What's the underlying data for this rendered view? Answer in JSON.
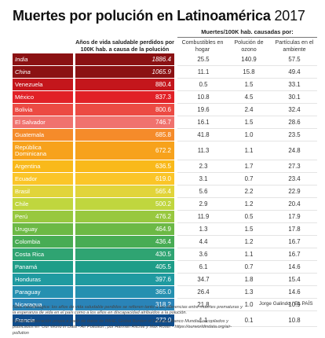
{
  "title": {
    "main": "Muertes por polución en Latinoamérica",
    "year": "2017"
  },
  "headers": {
    "main": "Años de vida saludable perdidos por 100K hab. a causa de la polución",
    "group": "Muertes/100K hab. causadas por:",
    "col1": "Combustibles en hogar",
    "col2": "Polución de ozono",
    "col3": "Partículas en el ambiente"
  },
  "chart_data": {
    "type": "table",
    "columns": [
      "Años de vida saludable perdidos por 100K hab. a causa de la polución",
      "Combustibles en hogar",
      "Polución de ozono",
      "Partículas en el ambiente"
    ],
    "rows": [
      {
        "country": "India",
        "value": "1886.4",
        "col1": "25.5",
        "col2": "140.9",
        "col3": "57.5",
        "color": "#8b1113",
        "italic": true
      },
      {
        "country": "China",
        "value": "1065.9",
        "col1": "11.1",
        "col2": "15.8",
        "col3": "49.4",
        "color": "#8b1113",
        "italic": true
      },
      {
        "country": "Venezuela",
        "value": "880.4",
        "col1": "0.5",
        "col2": "1.5",
        "col3": "33.1",
        "color": "#c4161c"
      },
      {
        "country": "México",
        "value": "837.3",
        "col1": "10.8",
        "col2": "4.5",
        "col3": "30.1",
        "color": "#e12127"
      },
      {
        "country": "Bolivia",
        "value": "800.6",
        "col1": "19.6",
        "col2": "2.4",
        "col3": "32.4",
        "color": "#ec4a43"
      },
      {
        "country": "El Salvador",
        "value": "746.7",
        "col1": "16.1",
        "col2": "1.5",
        "col3": "28.6",
        "color": "#f0726e"
      },
      {
        "country": "Guatemala",
        "value": "685.8",
        "col1": "41.8",
        "col2": "1.0",
        "col3": "23.5",
        "color": "#f58b2a"
      },
      {
        "country": "República Dominicana",
        "value": "672.2",
        "col1": "11.3",
        "col2": "1.1",
        "col3": "24.8",
        "color": "#f7a21c",
        "tall": true
      },
      {
        "country": "Argentina",
        "value": "636.5",
        "col1": "2.3",
        "col2": "1.7",
        "col3": "27.3",
        "color": "#f9b91a"
      },
      {
        "country": "Ecuador",
        "value": "619.0",
        "col1": "3.1",
        "col2": "0.7",
        "col3": "23.4",
        "color": "#fbc528"
      },
      {
        "country": "Brasil",
        "value": "565.4",
        "col1": "5.6",
        "col2": "2.2",
        "col3": "22.9",
        "color": "#e1d43a"
      },
      {
        "country": "Chile",
        "value": "500.2",
        "col1": "2.9",
        "col2": "1.2",
        "col3": "20.4",
        "color": "#c0d63e"
      },
      {
        "country": "Perú",
        "value": "476.2",
        "col1": "11.9",
        "col2": "0.5",
        "col3": "17.9",
        "color": "#98c83f"
      },
      {
        "country": "Uruguay",
        "value": "464.9",
        "col1": "1.3",
        "col2": "1.5",
        "col3": "17.8",
        "color": "#6cb945"
      },
      {
        "country": "Colombia",
        "value": "436.4",
        "col1": "4.4",
        "col2": "1.2",
        "col3": "16.7",
        "color": "#48ac54"
      },
      {
        "country": "Costa Rica",
        "value": "430.5",
        "col1": "3.6",
        "col2": "1.1",
        "col3": "16.7",
        "color": "#2fa472"
      },
      {
        "country": "Panamá",
        "value": "405.5",
        "col1": "6.1",
        "col2": "0.7",
        "col3": "14.6",
        "color": "#1e9d88"
      },
      {
        "country": "Honduras",
        "value": "397.6",
        "col1": "34.7",
        "col2": "1.8",
        "col3": "15.4",
        "color": "#1f9aa0"
      },
      {
        "country": "Paraguay",
        "value": "365.0",
        "col1": "26.4",
        "col2": "1.3",
        "col3": "14.6",
        "color": "#2590b0"
      },
      {
        "country": "Nicaragua",
        "value": "318.2",
        "col1": "21.8",
        "col2": "1.0",
        "col3": "10.9",
        "color": "#2a84b8"
      },
      {
        "country": "Francia",
        "value": "272.0",
        "col1": "1.1",
        "col2": "0.1",
        "col3": "10.8",
        "color": "#0f4d8c",
        "italic": true
      }
    ]
  },
  "credit": "Jorge Galindo / EL PAÍS",
  "note": "Nota metodológica: los años de vida saludable perdidos se refieren tanto a las diferencias entre muertes prematuras y la esperanza de vida en el país como a los años en discapacidad atribuidos a la polución.",
  "source": "Fuente: elaboración propia a partir de datos de IMHE, Global Burden of Disease, Banco Mundial; recopilados y publicados en 'Our World in Data - Air Pollution', por Hannah Ritchie y Max Roser - https://ourworldindata.org/air-pollution"
}
